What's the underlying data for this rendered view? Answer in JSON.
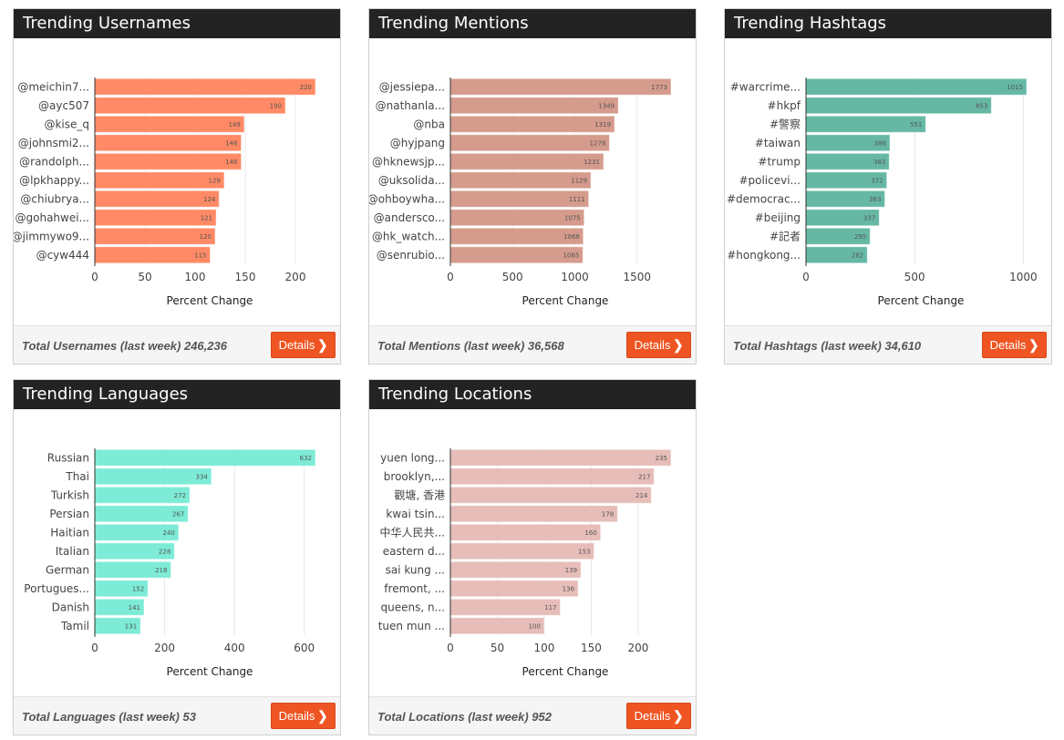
{
  "accent": "#ef5523",
  "header_bg": "#232323",
  "cards": [
    {
      "id": "usernames",
      "title": "Trending Usernames",
      "footer": "Total Usernames (last week) 246,236",
      "details_label": "Details",
      "details_icon": "chevron-right-icon",
      "color": "#ff8a65"
    },
    {
      "id": "mentions",
      "title": "Trending Mentions",
      "footer": "Total Mentions (last week) 36,568",
      "details_label": "Details",
      "details_icon": "chevron-right-icon",
      "color": "#d59b8c"
    },
    {
      "id": "hashtags",
      "title": "Trending Hashtags",
      "footer": "Total Hashtags (last week) 34,610",
      "details_label": "Details",
      "details_icon": "chevron-right-icon",
      "color": "#66b8a5"
    },
    {
      "id": "languages",
      "title": "Trending Languages",
      "footer": "Total Languages (last week) 53",
      "details_label": "Details",
      "details_icon": "chevron-right-icon",
      "color": "#7debd6"
    },
    {
      "id": "locations",
      "title": "Trending Locations",
      "footer": "Total Locations (last week) 952",
      "details_label": "Details",
      "details_icon": "chevron-right-icon",
      "color": "#e6bdb8"
    }
  ],
  "chart_data": [
    {
      "type": "bar",
      "orientation": "horizontal",
      "title": "Trending Usernames",
      "xlabel": "Percent Change",
      "ylabel": "",
      "categories": [
        "@meichin7...",
        "@ayc507",
        "@kise_q",
        "@johnsmi2...",
        "@randolph...",
        "@lpkhappy...",
        "@chiubrya...",
        "@gohahwei...",
        "@jimmywo9...",
        "@cyw444"
      ],
      "values": [
        220,
        190,
        149,
        146,
        146,
        129,
        124,
        121,
        120,
        115
      ],
      "xticks": [
        0,
        50,
        100,
        150,
        200
      ],
      "xlim": [
        0,
        220
      ],
      "grid": true,
      "color": "#ff8a65"
    },
    {
      "type": "bar",
      "orientation": "horizontal",
      "title": "Trending Mentions",
      "xlabel": "Percent Change",
      "ylabel": "",
      "categories": [
        "@jessiepa...",
        "@nathanla...",
        "@nba",
        "@hyjpang",
        "@hknewsjp...",
        "@uksolida...",
        "@ohboywha...",
        "@andersco...",
        "@hk_watch...",
        "@senrubio..."
      ],
      "values": [
        1773,
        1349,
        1319,
        1278,
        1231,
        1129,
        1111,
        1075,
        1068,
        1065
      ],
      "xticks": [
        0,
        500,
        1000,
        1500
      ],
      "xlim": [
        0,
        1773
      ],
      "grid": true,
      "color": "#d59b8c"
    },
    {
      "type": "bar",
      "orientation": "horizontal",
      "title": "Trending Hashtags",
      "xlabel": "Percent Change",
      "ylabel": "",
      "categories": [
        "#warcrime...",
        "#hkpf",
        "#警察",
        "#taiwan",
        "#trump",
        "#policevi...",
        "#democrac...",
        "#beijing",
        "#記者",
        "#hongkong..."
      ],
      "values": [
        1015,
        853,
        551,
        386,
        383,
        372,
        363,
        337,
        295,
        282
      ],
      "xticks": [
        0,
        500,
        1000
      ],
      "xlim": [
        0,
        1015
      ],
      "grid": true,
      "color": "#66b8a5"
    },
    {
      "type": "bar",
      "orientation": "horizontal",
      "title": "Trending Languages",
      "xlabel": "Percent Change",
      "ylabel": "",
      "categories": [
        "Russian",
        "Thai",
        "Turkish",
        "Persian",
        "Haitian",
        "Italian",
        "German",
        "Portugues...",
        "Danish",
        "Tamil"
      ],
      "values": [
        632,
        334,
        272,
        267,
        240,
        228,
        218,
        152,
        141,
        131
      ],
      "xticks": [
        0,
        200,
        400,
        600
      ],
      "xlim": [
        0,
        632
      ],
      "grid": true,
      "color": "#7debd6"
    },
    {
      "type": "bar",
      "orientation": "horizontal",
      "title": "Trending Locations",
      "xlabel": "Percent Change",
      "ylabel": "",
      "categories": [
        "yuen long...",
        "brooklyn,...",
        "觀塘, 香港",
        "kwai tsin...",
        "中华人民共...",
        "eastern d...",
        "sai kung ...",
        "fremont, ...",
        "queens, n...",
        "tuen mun ..."
      ],
      "values": [
        235,
        217,
        214,
        178,
        160,
        153,
        139,
        136,
        117,
        100
      ],
      "xticks": [
        0,
        50,
        100,
        150,
        200
      ],
      "xlim": [
        0,
        235
      ],
      "grid": true,
      "color": "#e6bdb8"
    }
  ]
}
